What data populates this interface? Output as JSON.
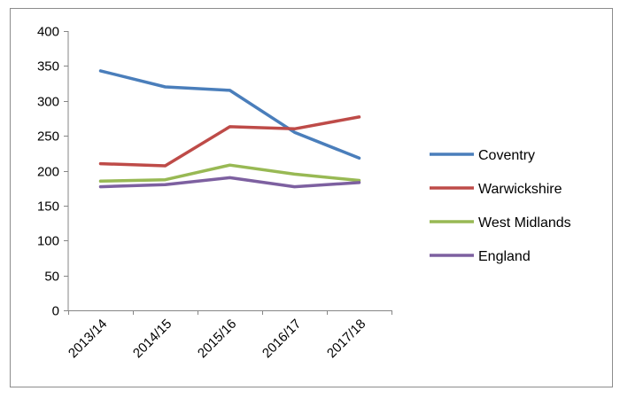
{
  "chart_data": {
    "type": "line",
    "title": "",
    "xlabel": "",
    "ylabel": "",
    "categories": [
      "2013/14",
      "2014/15",
      "2015/16",
      "2016/17",
      "2017/18"
    ],
    "ylim": [
      0,
      400
    ],
    "yticks": [
      0,
      50,
      100,
      150,
      200,
      250,
      300,
      350,
      400
    ],
    "grid": false,
    "legend_position": "right",
    "series": [
      {
        "name": "Coventry",
        "color": "#4a7ebb",
        "values": [
          343,
          320,
          315,
          255,
          218
        ]
      },
      {
        "name": "Warwickshire",
        "color": "#be4b48",
        "values": [
          210,
          207,
          263,
          260,
          277
        ]
      },
      {
        "name": "West Midlands",
        "color": "#98b954",
        "values": [
          185,
          187,
          208,
          195,
          186
        ]
      },
      {
        "name": "England",
        "color": "#7d60a0",
        "values": [
          177,
          180,
          190,
          177,
          183
        ]
      }
    ]
  }
}
